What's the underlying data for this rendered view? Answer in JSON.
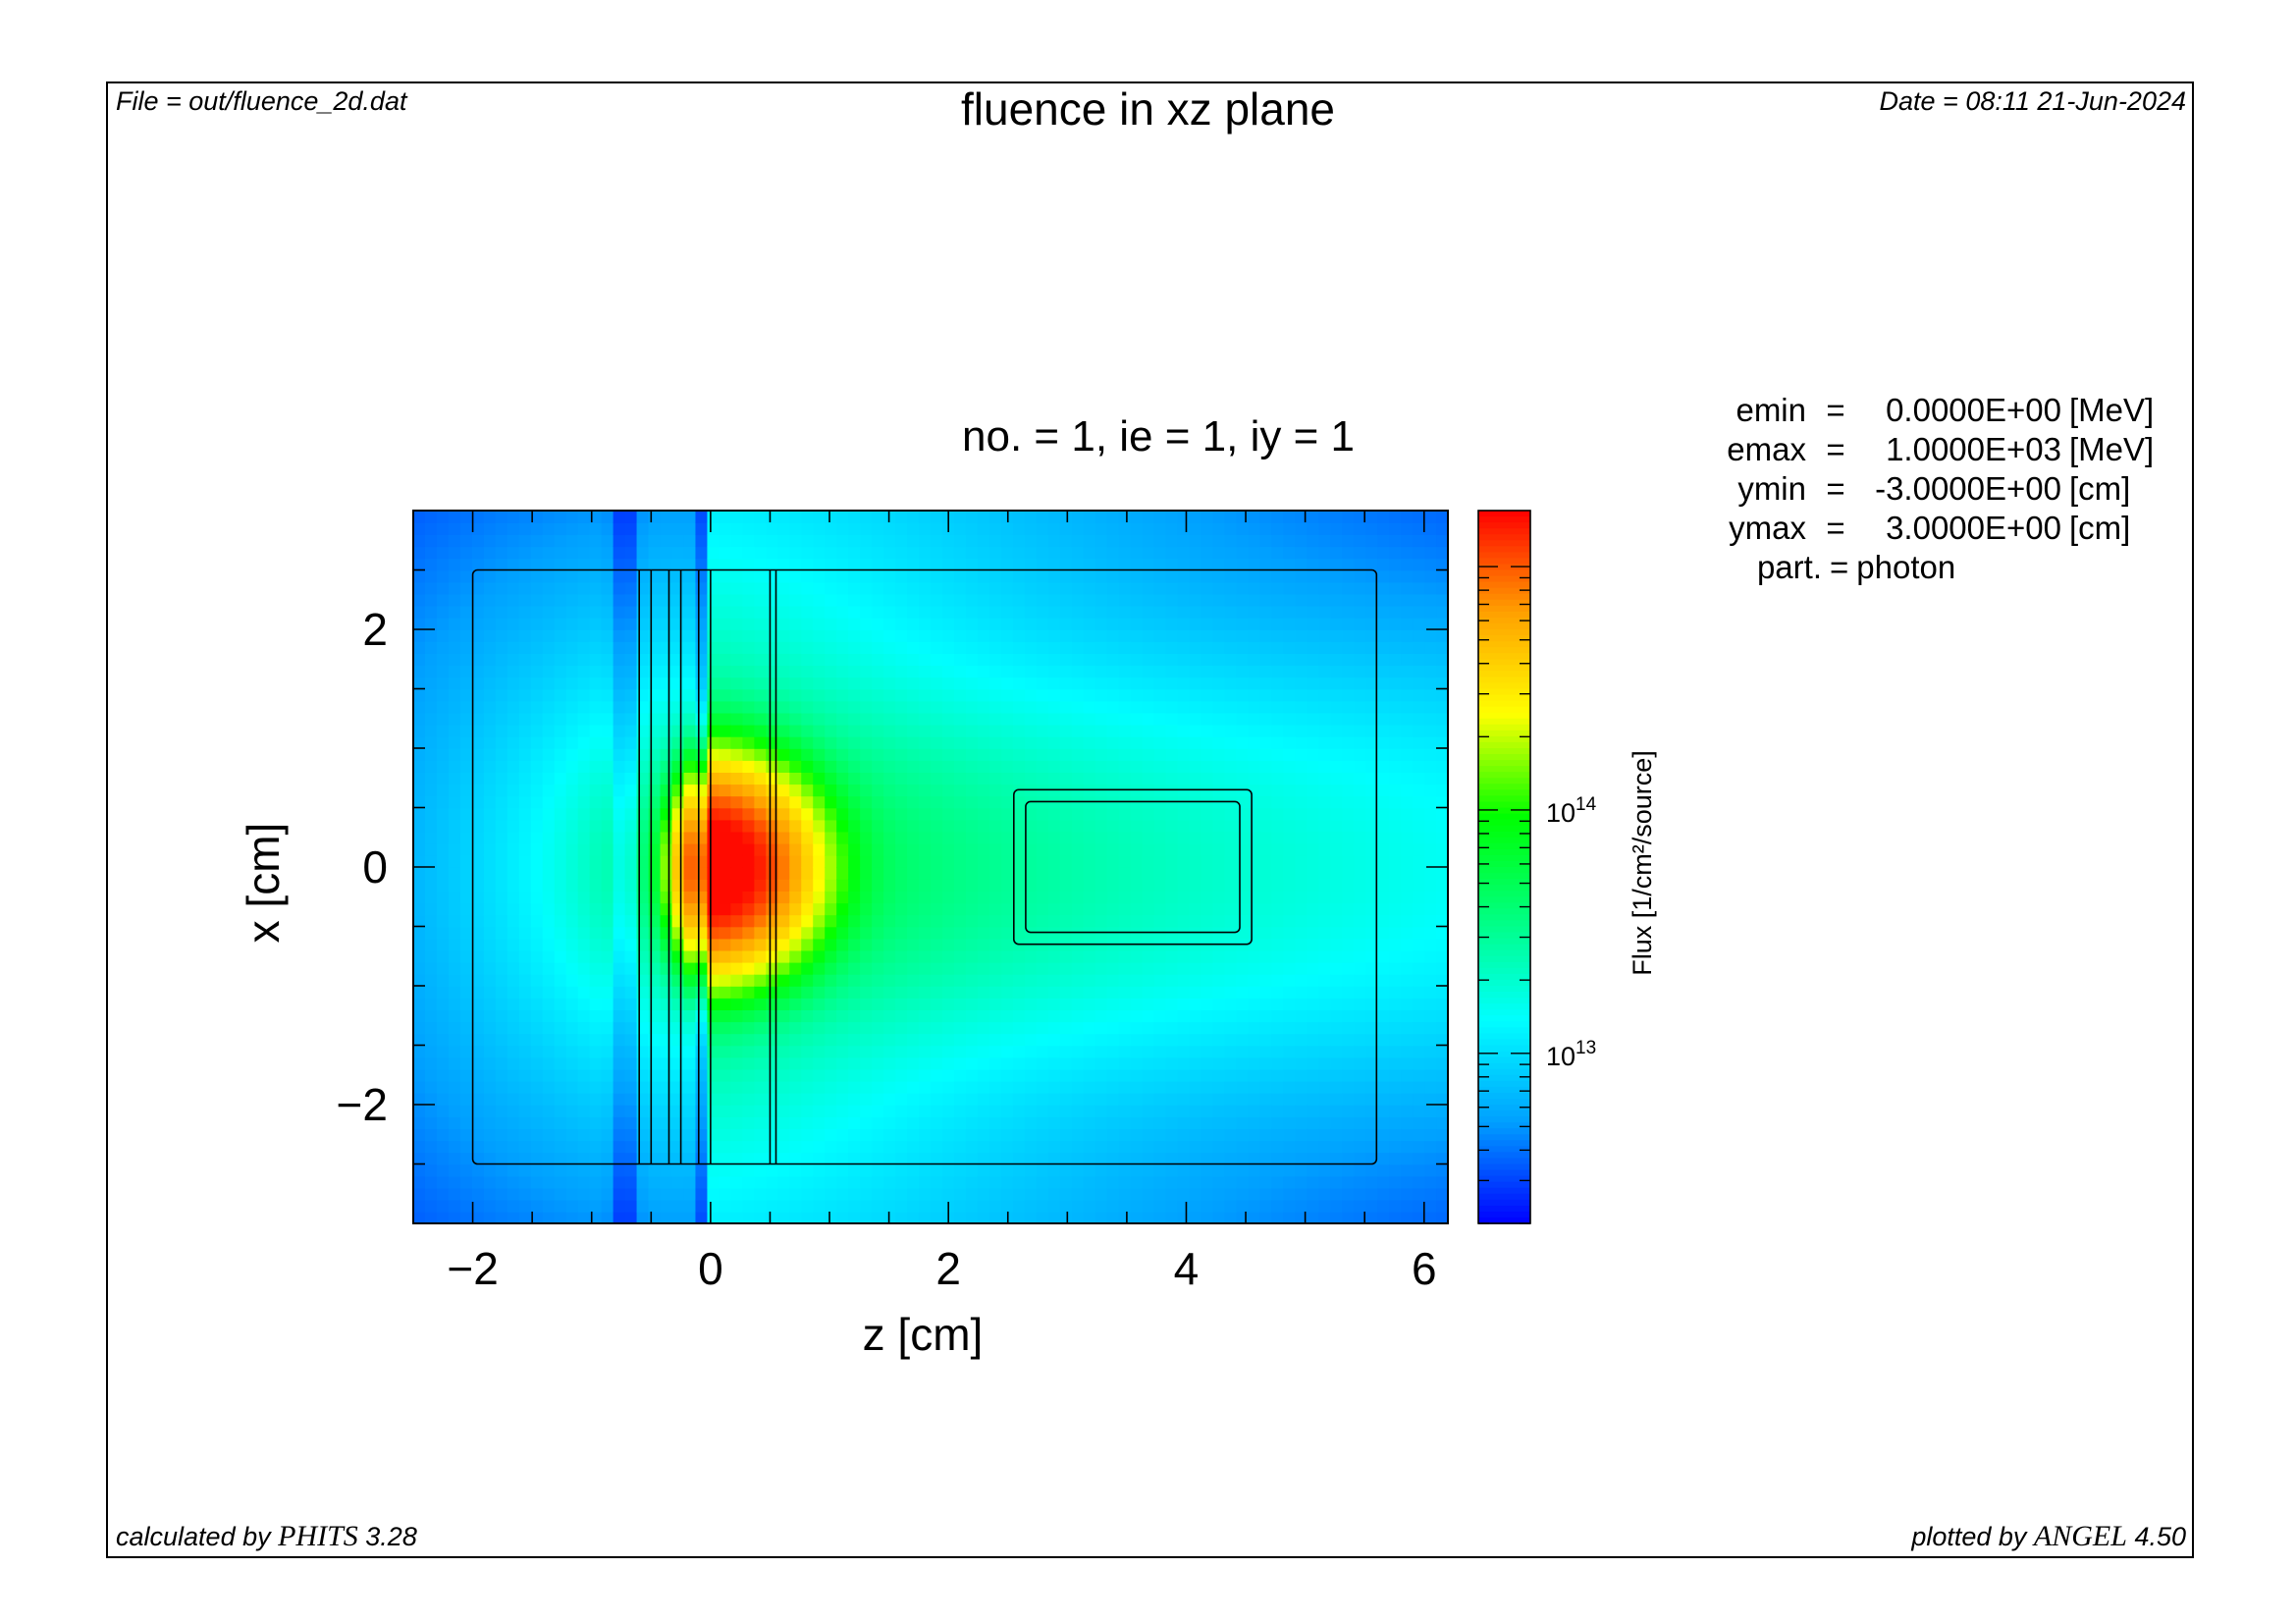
{
  "header": {
    "file_label": "File = out/fluence_2d.dat",
    "date_label": "Date = 08:11 21-Jun-2024",
    "title": "fluence in xz plane",
    "subtitle": "no. =  1,  ie =  1,  iy =  1"
  },
  "footer": {
    "calc_prefix": "calculated by ",
    "calc_program": "PHITS",
    "calc_version": " 3.28",
    "plot_prefix": "plotted by ",
    "plot_program": "ANGEL",
    "plot_version": " 4.50"
  },
  "info": [
    {
      "key": "emin",
      "eq": "=",
      "value": "0.0000E+00",
      "unit": "[MeV]"
    },
    {
      "key": "emax",
      "eq": "=",
      "value": "1.0000E+03",
      "unit": "[MeV]"
    },
    {
      "key": "ymin",
      "eq": "=",
      "value": "-3.0000E+00",
      "unit": "[cm]"
    },
    {
      "key": "ymax",
      "eq": "=",
      "value": "3.0000E+00",
      "unit": "[cm]"
    }
  ],
  "part": {
    "key": "part.",
    "eq": "=",
    "value": "photon"
  },
  "chart_data": {
    "type": "heatmap",
    "title": "fluence in xz plane",
    "subtitle": "no. =  1,  ie =  1,  iy =  1",
    "xlabel": "z [cm]",
    "ylabel": "x [cm]",
    "xlim": [
      -2.5,
      6.2
    ],
    "ylim": [
      -3,
      3
    ],
    "x_ticks": [
      -2,
      0,
      2,
      4,
      6
    ],
    "x_tick_labels": [
      "−2",
      "0",
      "2",
      "4",
      "6"
    ],
    "y_ticks": [
      -2,
      0,
      2
    ],
    "y_tick_labels": [
      "−2",
      "0",
      "2"
    ],
    "colorbar": {
      "label": "Flux [1/cm²/source]",
      "scale": "log",
      "range": [
        2000000000000.0,
        1700000000000000.0
      ],
      "ticks": [
        10000000000000.0,
        100000000000000.0
      ],
      "tick_labels": [
        {
          "base": "10",
          "exp": "13"
        },
        {
          "base": "10",
          "exp": "14"
        }
      ],
      "colormap": [
        "#0000ff",
        "#00a0ff",
        "#00ffff",
        "#00ff80",
        "#00ff00",
        "#ffff00",
        "#ffa000",
        "#ff0000"
      ]
    },
    "field_estimate": {
      "source_z": 0,
      "source_x": 0,
      "peak": 1600000000000000.0,
      "note_units": "1/cm2/source"
    },
    "geometry": {
      "outer_box": {
        "z": [
          -2.0,
          5.6
        ],
        "x": [
          -2.5,
          2.5
        ]
      },
      "layer_boundaries_z": [
        -0.6,
        -0.5,
        -0.35,
        -0.25,
        -0.1,
        0.0,
        0.5,
        0.55
      ],
      "inner_box_outer": {
        "z": [
          2.55,
          4.55
        ],
        "x": [
          -0.65,
          0.65
        ]
      },
      "inner_box_inner": {
        "z": [
          2.65,
          4.45
        ],
        "x": [
          -0.55,
          0.55
        ]
      }
    }
  }
}
